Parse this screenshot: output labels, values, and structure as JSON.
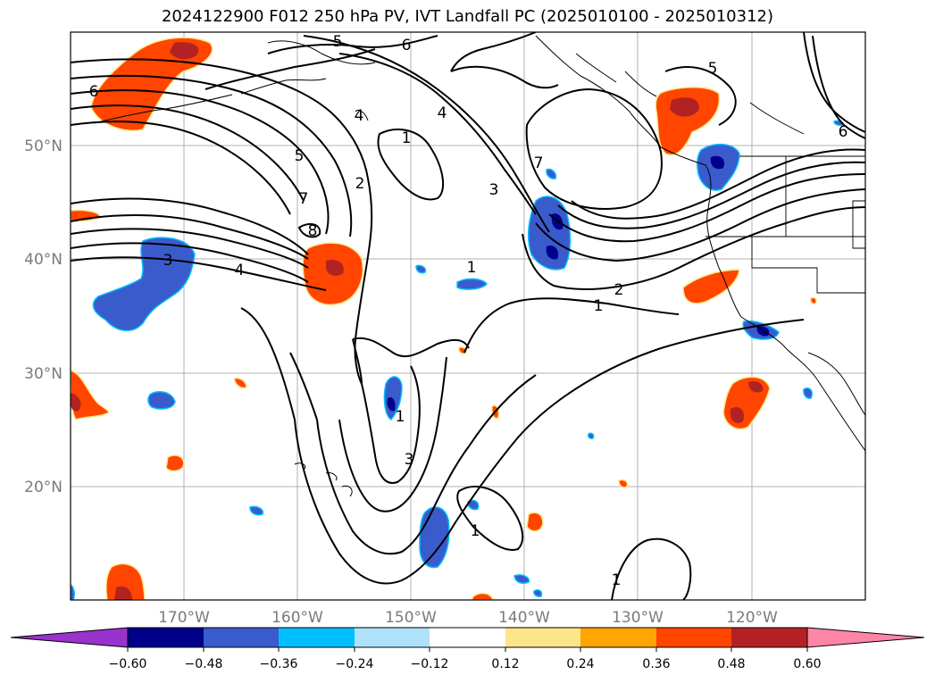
{
  "title": "2024122900 F012 250 hPa PV, IVT Landfall PC (2025010100 - 2025010312)",
  "lat_labels": [
    "50°N",
    "40°N",
    "30°N",
    "20°N"
  ],
  "lon_labels": [
    "170°W",
    "160°W",
    "150°W",
    "140°W",
    "130°W",
    "120°W"
  ],
  "contour_labels": [
    "5",
    "6",
    "6",
    "4",
    "1",
    "5",
    "2",
    "7",
    "8",
    "3",
    "4",
    "1",
    "4",
    "3",
    "7",
    "1",
    "2",
    "1",
    "3",
    "1",
    "1",
    "5",
    "6"
  ],
  "colorbar": {
    "labels": [
      "−0.60",
      "−0.48",
      "−0.36",
      "−0.24",
      "−0.12",
      "0.12",
      "0.24",
      "0.36",
      "0.48",
      "0.60"
    ],
    "colors": [
      "#9933cc",
      "#00008b",
      "#3a5bcc",
      "#00bfff",
      "#aee2fb",
      "#ffffff",
      "#fde68a",
      "#ffa500",
      "#ff4500",
      "#b22222",
      "#ff85a8"
    ]
  },
  "colors": {
    "blue_fill": "#3a5bcc",
    "dark_blue_fill": "#00008b",
    "light_blue_edge": "#00bfff",
    "orange_fill": "#ff4500",
    "dark_red_fill": "#b22222",
    "yellow_edge": "#fde68a"
  }
}
